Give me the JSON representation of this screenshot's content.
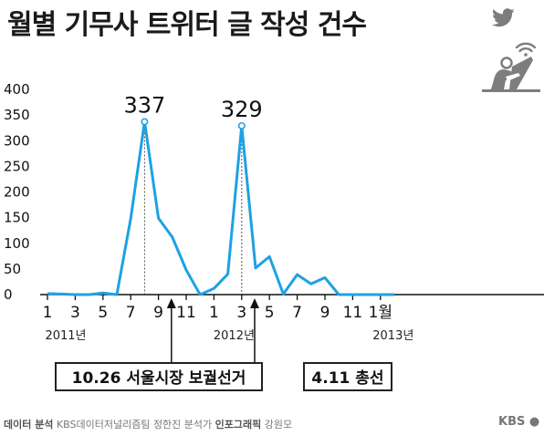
{
  "title": "월별 기무사 트위터 글 작성 건수",
  "colors": {
    "line": "#1ea1e4",
    "axis": "#111111",
    "grid": "#bbbbbb",
    "icon": "#7d7d7d"
  },
  "icons": [
    "twitter-bird-icon",
    "wifi-icon",
    "person-at-laptop-icon"
  ],
  "chart_data": {
    "type": "line",
    "title": "월별 기무사 트위터 글 작성 건수",
    "xlabel": "",
    "ylabel": "",
    "ylim": [
      0,
      400
    ],
    "yticks": [
      "0",
      "50",
      "100",
      "150",
      "200",
      "250",
      "300",
      "350",
      "400"
    ],
    "grid": false,
    "x": [
      "2011-01",
      "2011-02",
      "2011-03",
      "2011-04",
      "2011-05",
      "2011-06",
      "2011-07",
      "2011-08",
      "2011-09",
      "2011-10",
      "2011-11",
      "2011-12",
      "2012-01",
      "2012-02",
      "2012-03",
      "2012-04",
      "2012-05",
      "2012-06",
      "2012-07",
      "2012-08",
      "2012-09",
      "2012-10",
      "2012-11",
      "2012-12",
      "2013-01",
      "2013-02"
    ],
    "xtick_labels": [
      "1",
      "3",
      "5",
      "7",
      "9",
      "11",
      "1",
      "3",
      "5",
      "7",
      "9",
      "11",
      "1월"
    ],
    "year_labels": [
      "2011년",
      "2012년",
      "2013년"
    ],
    "series": [
      {
        "values": [
          2,
          1,
          0,
          0,
          3,
          0,
          148,
          337,
          149,
          112,
          48,
          0,
          12,
          40,
          329,
          52,
          74,
          1,
          39,
          21,
          33,
          0,
          0,
          0,
          0,
          0
        ]
      }
    ],
    "annotations": [
      {
        "text": "337",
        "x": "2011-08",
        "y": 337
      },
      {
        "text": "329",
        "x": "2012-03",
        "y": 329
      }
    ],
    "events": [
      {
        "label": "10.26 서울시장 보궐선거",
        "x": "2011-10"
      },
      {
        "label": "4.11 총선",
        "x": "2012-04"
      }
    ]
  },
  "footer": {
    "credit_bold_1": "데이터 분석",
    "credit_1": "KBS데이터저널리즘팀 정한진 분석가",
    "credit_bold_2": "인포그래픽",
    "credit_2": "강원모",
    "logo": "KBS"
  }
}
